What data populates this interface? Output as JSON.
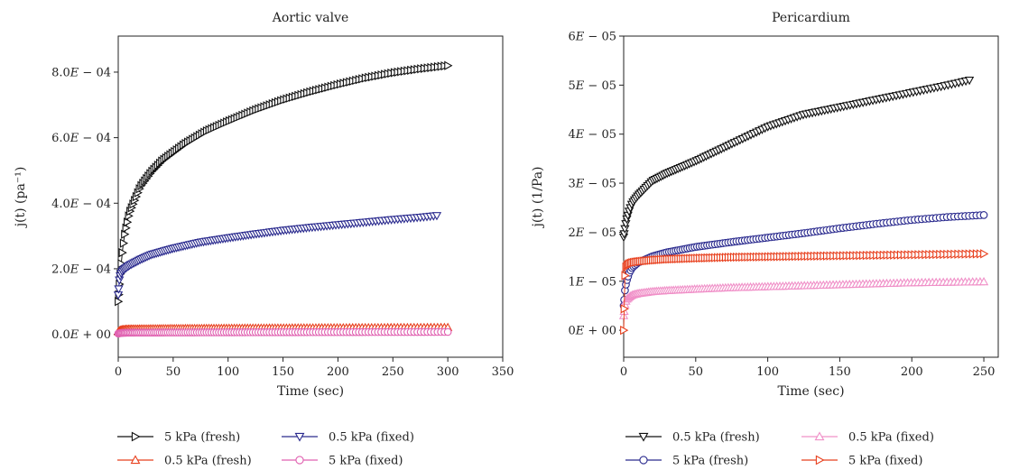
{
  "chart_data": [
    {
      "type": "scatter",
      "title": "Aortic valve",
      "xlabel": "Time (sec)",
      "ylabel": "j(t) (pa⁻¹)",
      "xlim": [
        0,
        350
      ],
      "ylim": [
        -7e-05,
        0.00091
      ],
      "x_ticks": [
        0,
        50,
        100,
        150,
        200,
        250,
        300,
        350
      ],
      "x_tick_labels": [
        "0",
        "50",
        "100",
        "150",
        "200",
        "250",
        "300",
        "350"
      ],
      "y_ticks": [
        0,
        0.0002,
        0.0004,
        0.0006,
        0.0008
      ],
      "y_tick_labels": [
        "0.0E + 00",
        "2.0E − 04",
        "4.0E − 04",
        "6.0E − 04",
        "8.0E − 04"
      ],
      "grid": false,
      "legend_position": "bottom",
      "series": [
        {
          "name": "5 kPa (fresh)",
          "color": "#111111",
          "marker": "triangle-right",
          "x": [
            0,
            1,
            2,
            4,
            6,
            10,
            15,
            20,
            30,
            40,
            50,
            60,
            80,
            100,
            125,
            150,
            175,
            200,
            225,
            250,
            275,
            300
          ],
          "y": [
            0.0001,
            0.00015,
            0.00019,
            0.00026,
            0.00031,
            0.00037,
            0.00041,
            0.00045,
            0.000495,
            0.00053,
            0.000555,
            0.00058,
            0.00062,
            0.00065,
            0.000685,
            0.000715,
            0.00074,
            0.000762,
            0.000782,
            0.000798,
            0.00081,
            0.00082
          ]
        },
        {
          "name": "0.5 kPa (fixed)",
          "color": "#2a2a8e",
          "marker": "triangle-down",
          "x": [
            0,
            1,
            2,
            4,
            6,
            10,
            20,
            30,
            50,
            75,
            100,
            125,
            150,
            175,
            200,
            225,
            250,
            275,
            290
          ],
          "y": [
            0.00012,
            0.000165,
            0.000182,
            0.000195,
            0.0002,
            0.00021,
            0.000228,
            0.000243,
            0.000262,
            0.000281,
            0.000294,
            0.000306,
            0.000317,
            0.000326,
            0.000334,
            0.000342,
            0.00035,
            0.000357,
            0.000362
          ]
        },
        {
          "name": "0.5 kPa (fresh)",
          "color": "#e8401e",
          "marker": "triangle-up",
          "x": [
            0,
            2,
            5,
            10,
            50,
            100,
            150,
            200,
            250,
            300
          ],
          "y": [
            8e-06,
            1.3e-05,
            1.5e-05,
            1.6e-05,
            1.75e-05,
            1.85e-05,
            1.93e-05,
            2e-05,
            2.05e-05,
            2.1e-05
          ]
        },
        {
          "name": "5 kPa (fixed)",
          "color": "#e060b0",
          "marker": "circle",
          "x": [
            0,
            2,
            5,
            10,
            50,
            100,
            150,
            200,
            250,
            300
          ],
          "y": [
            2e-06,
            4e-06,
            4.5e-06,
            5e-06,
            5.5e-06,
            6e-06,
            6.3e-06,
            6.6e-06,
            6.9e-06,
            7.2e-06
          ]
        }
      ],
      "legend_order": [
        0,
        2,
        1,
        3
      ]
    },
    {
      "type": "scatter",
      "title": "Pericardium",
      "xlabel": "Time (sec)",
      "ylabel": "j(t) (1/Pa)",
      "xlim": [
        0,
        260
      ],
      "ylim": [
        -5.5e-06,
        6e-05
      ],
      "x_ticks": [
        0,
        50,
        100,
        150,
        200,
        250
      ],
      "x_tick_labels": [
        "0",
        "50",
        "100",
        "150",
        "200",
        "250"
      ],
      "y_ticks": [
        0,
        1e-05,
        2e-05,
        3e-05,
        4e-05,
        5e-05,
        6e-05
      ],
      "y_tick_labels": [
        "0E + 00",
        "1E − 05",
        "2E − 05",
        "3E − 05",
        "4E − 05",
        "5E − 05",
        "6E − 05"
      ],
      "grid": false,
      "legend_position": "bottom",
      "series": [
        {
          "name": "0.5 kPa (fresh)",
          "color": "#111111",
          "marker": "triangle-down",
          "x": [
            0,
            1,
            2,
            4,
            6,
            10,
            20,
            30,
            50,
            75,
            100,
            125,
            150,
            175,
            200,
            225,
            240
          ],
          "y": [
            1.9e-05,
            2.1e-05,
            2.25e-05,
            2.45e-05,
            2.6e-05,
            2.75e-05,
            3.05e-05,
            3.2e-05,
            3.45e-05,
            3.8e-05,
            4.15e-05,
            4.4e-05,
            4.55e-05,
            4.7e-05,
            4.85e-05,
            5e-05,
            5.1e-05
          ]
        },
        {
          "name": "5 kPa (fresh)",
          "color": "#2a2a8e",
          "marker": "circle",
          "x": [
            0,
            1,
            2,
            4,
            6,
            10,
            20,
            30,
            50,
            75,
            100,
            125,
            150,
            175,
            200,
            225,
            250
          ],
          "y": [
            5e-06,
            8.5e-06,
            1e-05,
            1.18e-05,
            1.28e-05,
            1.38e-05,
            1.51e-05,
            1.59e-05,
            1.7e-05,
            1.8e-05,
            1.89e-05,
            1.98e-05,
            2.08e-05,
            2.17e-05,
            2.25e-05,
            2.31e-05,
            2.35e-05
          ]
        },
        {
          "name": "0.5 kPa (fixed)",
          "color": "#f090c8",
          "marker": "triangle-up",
          "x": [
            0,
            1,
            2,
            4,
            6,
            10,
            20,
            30,
            50,
            75,
            100,
            125,
            150,
            175,
            200,
            225,
            250
          ],
          "y": [
            3e-06,
            5.5e-06,
            6.3e-06,
            6.8e-06,
            7.2e-06,
            7.5e-06,
            7.9e-06,
            8.1e-06,
            8.4e-06,
            8.7e-06,
            8.9e-06,
            9.1e-06,
            9.3e-06,
            9.5e-06,
            9.7e-06,
            9.8e-06,
            9.9e-06
          ]
        },
        {
          "name": "5 kPa (fixed)",
          "color": "#e8401e",
          "marker": "triangle-right",
          "x": [
            0,
            1,
            2,
            4,
            6,
            10,
            20,
            30,
            50,
            75,
            100,
            125,
            150,
            175,
            200,
            225,
            250
          ],
          "y": [
            0,
            1.25e-05,
            1.32e-05,
            1.36e-05,
            1.38e-05,
            1.4e-05,
            1.43e-05,
            1.45e-05,
            1.47e-05,
            1.49e-05,
            1.5e-05,
            1.51e-05,
            1.52e-05,
            1.53e-05,
            1.54e-05,
            1.55e-05,
            1.56e-05
          ]
        }
      ],
      "legend_order": [
        0,
        1,
        2,
        3
      ]
    }
  ]
}
